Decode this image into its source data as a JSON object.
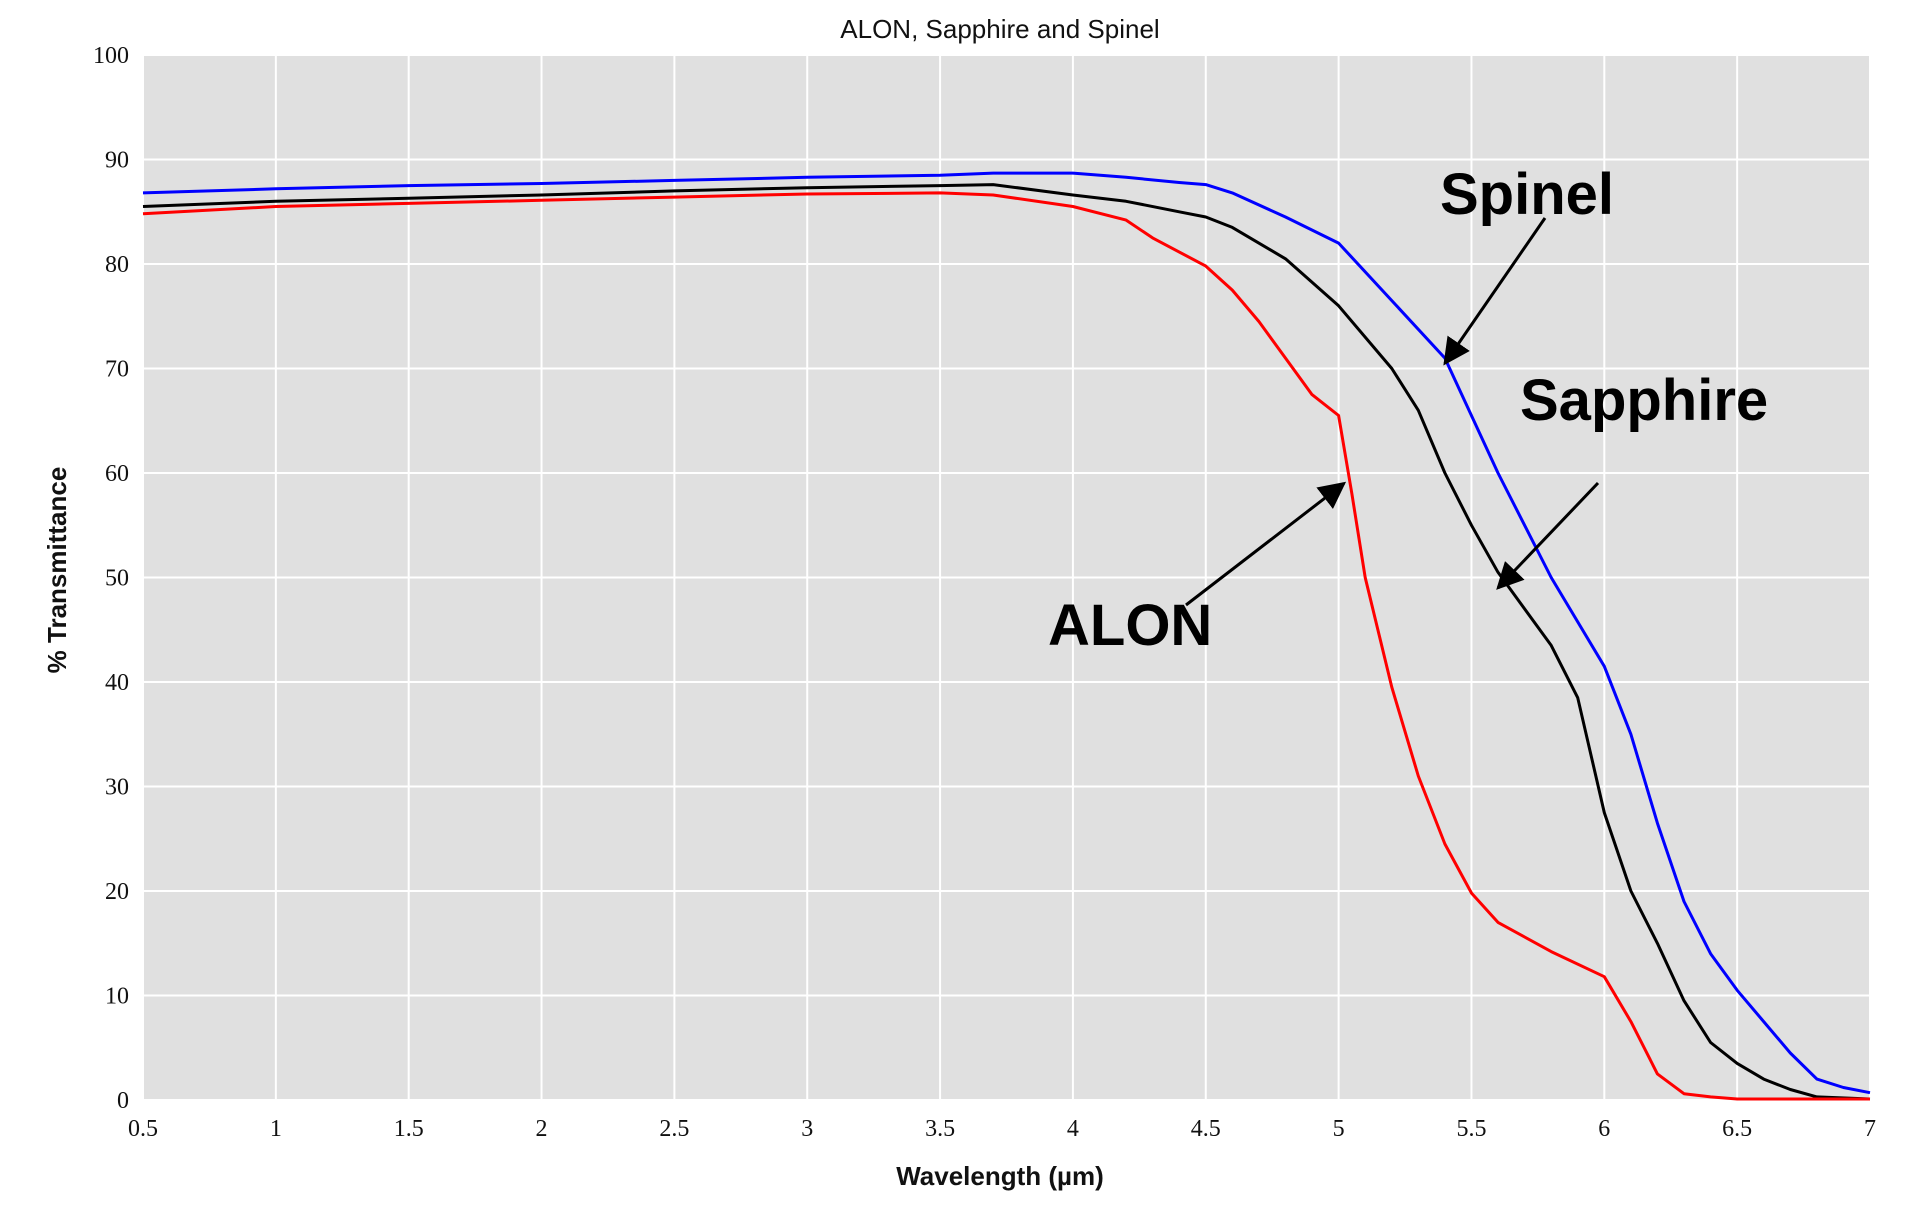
{
  "chart_data": {
    "type": "line",
    "title": "ALON, Sapphire and Spinel",
    "xlabel": "Wavelength (µm)",
    "ylabel": "% Transmittance",
    "xlim": [
      0.5,
      7
    ],
    "ylim": [
      0,
      100
    ],
    "grid": true,
    "x_ticks": [
      0.5,
      1,
      1.5,
      2,
      2.5,
      3,
      3.5,
      4,
      4.5,
      5,
      5.5,
      6,
      6.5,
      7
    ],
    "x_tick_labels": [
      "0.5",
      "1",
      "1.5",
      "2",
      "2.5",
      "3",
      "3.5",
      "4",
      "4.5",
      "5",
      "5.5",
      "6",
      "6.5",
      "7"
    ],
    "y_ticks": [
      0,
      10,
      20,
      30,
      40,
      50,
      60,
      70,
      80,
      90,
      100
    ],
    "y_tick_labels": [
      "0",
      "10",
      "20",
      "30",
      "40",
      "50",
      "60",
      "70",
      "80",
      "90",
      "100"
    ],
    "plot_background": "#e0e0e0",
    "series": [
      {
        "name": "Spinel",
        "color": "#0000ff",
        "x": [
          0.5,
          1,
          1.5,
          2,
          2.5,
          3,
          3.5,
          3.7,
          4,
          4.2,
          4.4,
          4.5,
          4.6,
          4.8,
          5,
          5.2,
          5.4,
          5.6,
          5.8,
          6,
          6.1,
          6.2,
          6.3,
          6.4,
          6.5,
          6.6,
          6.7,
          6.8,
          6.9,
          7
        ],
        "y": [
          86.8,
          87.2,
          87.5,
          87.7,
          88,
          88.3,
          88.5,
          88.7,
          88.7,
          88.3,
          87.8,
          87.6,
          86.8,
          84.5,
          82,
          76.5,
          71,
          60,
          50,
          41.5,
          35,
          26.5,
          19,
          14,
          10.5,
          7.5,
          4.5,
          2,
          1.2,
          0.7
        ]
      },
      {
        "name": "Sapphire",
        "color": "#000000",
        "x": [
          0.5,
          1,
          1.5,
          2,
          2.5,
          3,
          3.5,
          3.7,
          4,
          4.2,
          4.4,
          4.5,
          4.6,
          4.8,
          5,
          5.2,
          5.3,
          5.4,
          5.5,
          5.6,
          5.7,
          5.8,
          5.9,
          6,
          6.1,
          6.2,
          6.3,
          6.4,
          6.5,
          6.6,
          6.7,
          6.8,
          7
        ],
        "y": [
          85.5,
          86,
          86.3,
          86.6,
          87,
          87.3,
          87.5,
          87.6,
          86.6,
          86,
          85,
          84.5,
          83.5,
          80.5,
          76,
          70,
          66,
          60,
          55,
          50.5,
          47,
          43.5,
          38.5,
          27.5,
          20,
          15,
          9.5,
          5.5,
          3.5,
          2,
          1,
          0.3,
          0.1
        ]
      },
      {
        "name": "ALON",
        "color": "#ff0000",
        "x": [
          0.5,
          1,
          1.5,
          2,
          2.5,
          3,
          3.5,
          3.7,
          4,
          4.2,
          4.3,
          4.5,
          4.6,
          4.7,
          4.8,
          4.9,
          5,
          5.05,
          5.1,
          5.2,
          5.3,
          5.4,
          5.5,
          5.6,
          5.8,
          6,
          6.1,
          6.2,
          6.3,
          6.4,
          6.5,
          7
        ],
        "y": [
          84.8,
          85.5,
          85.8,
          86.1,
          86.4,
          86.7,
          86.8,
          86.6,
          85.5,
          84.2,
          82.5,
          79.8,
          77.5,
          74.5,
          71,
          67.5,
          65.5,
          58,
          50,
          39.5,
          31,
          24.5,
          19.8,
          17,
          14.2,
          11.8,
          7.5,
          2.5,
          0.6,
          0.3,
          0.1,
          0.1
        ]
      }
    ],
    "annotations": [
      {
        "text": "Spinel",
        "points_to": {
          "x": 5.4,
          "y": 70.5
        }
      },
      {
        "text": "Sapphire",
        "points_to": {
          "x": 5.6,
          "y": 49
        }
      },
      {
        "text": "ALON",
        "points_to": {
          "x": 5.02,
          "y": 59
        }
      }
    ]
  }
}
